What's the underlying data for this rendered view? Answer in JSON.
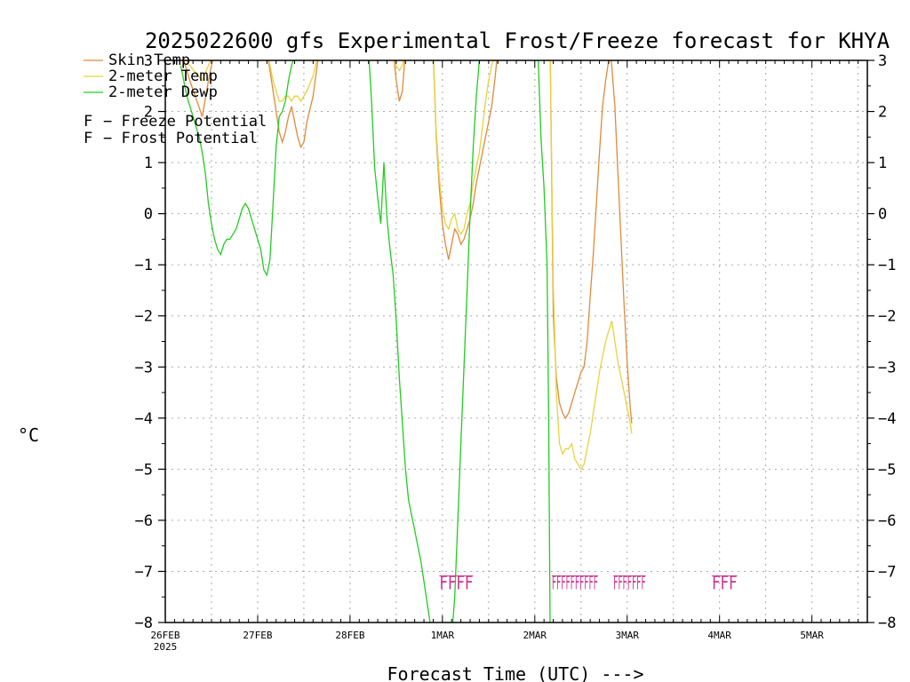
{
  "chart_data": {
    "type": "line",
    "title": "2025022600 gfs Experimental Frost/Freeze forecast for KHYA",
    "xlabel": "Forecast Time (UTC) --->",
    "ylabel": "°C",
    "ylim": [
      -8,
      3
    ],
    "xlim_hours": [
      0,
      228
    ],
    "yticks": [
      -8,
      -7,
      -6,
      -5,
      -4,
      -3,
      -2,
      -1,
      0,
      1,
      2,
      3
    ],
    "xticks": [
      {
        "label": "26FEB",
        "sublabel": "2025",
        "hour": 0
      },
      {
        "label": "27FEB",
        "hour": 30
      },
      {
        "label": "28FEB",
        "hour": 60
      },
      {
        "label": "1MAR",
        "hour": 90
      },
      {
        "label": "2MAR",
        "hour": 120
      },
      {
        "label": "3MAR",
        "hour": 150
      },
      {
        "label": "4MAR",
        "hour": 180
      },
      {
        "label": "5MAR",
        "hour": 210
      }
    ],
    "grid": true,
    "legend_position": "top-left",
    "series": [
      {
        "name": "Skin Temp",
        "color": "#e08a3c",
        "points": [
          [
            5,
            3.2
          ],
          [
            8,
            2.6
          ],
          [
            12,
            1.9
          ],
          [
            14,
            2.6
          ],
          [
            16,
            3.2
          ],
          [
            33,
            3.2
          ],
          [
            35,
            2.4
          ],
          [
            37,
            1.6
          ],
          [
            38,
            1.4
          ],
          [
            39,
            1.6
          ],
          [
            40,
            1.9
          ],
          [
            41,
            2.1
          ],
          [
            42,
            1.8
          ],
          [
            43,
            1.5
          ],
          [
            44,
            1.3
          ],
          [
            45,
            1.4
          ],
          [
            46,
            1.8
          ],
          [
            48,
            2.3
          ],
          [
            50,
            3.2
          ],
          [
            74,
            3.2
          ],
          [
            75,
            2.6
          ],
          [
            76,
            2.2
          ],
          [
            77,
            2.4
          ],
          [
            78,
            3.2
          ],
          [
            87,
            3.2
          ],
          [
            88,
            1.5
          ],
          [
            89,
            0.5
          ],
          [
            90,
            -0.2
          ],
          [
            91,
            -0.6
          ],
          [
            92,
            -0.9
          ],
          [
            93,
            -0.6
          ],
          [
            94,
            -0.3
          ],
          [
            95,
            -0.4
          ],
          [
            96,
            -0.6
          ],
          [
            97,
            -0.5
          ],
          [
            98,
            -0.3
          ],
          [
            99,
            -0.1
          ],
          [
            100,
            0.2
          ],
          [
            101,
            0.6
          ],
          [
            103,
            1.2
          ],
          [
            105,
            1.8
          ],
          [
            106,
            2.1
          ],
          [
            107,
            2.6
          ],
          [
            108,
            3.2
          ],
          [
            125,
            3.2
          ],
          [
            126,
            -2
          ],
          [
            127,
            -3.2
          ],
          [
            128,
            -3.7
          ],
          [
            129,
            -3.9
          ],
          [
            130,
            -4
          ],
          [
            131,
            -3.9
          ],
          [
            132,
            -3.7
          ],
          [
            133,
            -3.5
          ],
          [
            134,
            -3.3
          ],
          [
            135,
            -3.1
          ],
          [
            136,
            -3
          ],
          [
            137,
            -2.5
          ],
          [
            138,
            -1.6
          ],
          [
            139,
            -0.8
          ],
          [
            140,
            0.2
          ],
          [
            141,
            1.2
          ],
          [
            142,
            2.1
          ],
          [
            143,
            2.6
          ],
          [
            144,
            3
          ],
          [
            144.5,
            3.1
          ],
          [
            145,
            2.9
          ],
          [
            146,
            2.1
          ],
          [
            147,
            0.8
          ],
          [
            148,
            -0.5
          ],
          [
            149,
            -1.8
          ],
          [
            150,
            -2.9
          ],
          [
            151,
            -3.8
          ],
          [
            151.5,
            -4.1
          ]
        ]
      },
      {
        "name": "2-meter Temp",
        "color": "#e8d23c",
        "points": [
          [
            5,
            3.2
          ],
          [
            8,
            2.9
          ],
          [
            12,
            2.6
          ],
          [
            14,
            2.9
          ],
          [
            16,
            3.2
          ],
          [
            33,
            3.2
          ],
          [
            34,
            2.9
          ],
          [
            35,
            2.6
          ],
          [
            36,
            2.4
          ],
          [
            37,
            2.2
          ],
          [
            38,
            2.2
          ],
          [
            39,
            2.3
          ],
          [
            40,
            2.3
          ],
          [
            41,
            2.2
          ],
          [
            42,
            2.3
          ],
          [
            43,
            2.3
          ],
          [
            44,
            2.2
          ],
          [
            45,
            2.3
          ],
          [
            46,
            2.4
          ],
          [
            48,
            2.7
          ],
          [
            50,
            3.2
          ],
          [
            74,
            3.2
          ],
          [
            75,
            2.9
          ],
          [
            76,
            2.8
          ],
          [
            77,
            2.9
          ],
          [
            78,
            3.2
          ],
          [
            87,
            3.2
          ],
          [
            88,
            1.6
          ],
          [
            89,
            0.7
          ],
          [
            90,
            0.1
          ],
          [
            91,
            -0.2
          ],
          [
            92,
            -0.3
          ],
          [
            93,
            -0.1
          ],
          [
            94,
            0
          ],
          [
            95,
            -0.3
          ],
          [
            96,
            -0.4
          ],
          [
            97,
            -0.3
          ],
          [
            98,
            0
          ],
          [
            99,
            0.2
          ],
          [
            100,
            0.6
          ],
          [
            101,
            0.9
          ],
          [
            102,
            1.2
          ],
          [
            103,
            1.7
          ],
          [
            104,
            2.2
          ],
          [
            105,
            2.6
          ],
          [
            106,
            2.9
          ],
          [
            107,
            3.1
          ],
          [
            108,
            3.2
          ],
          [
            125,
            3.2
          ],
          [
            126,
            -1.4
          ],
          [
            127,
            -3.5
          ],
          [
            128,
            -4.5
          ],
          [
            129,
            -4.7
          ],
          [
            130,
            -4.6
          ],
          [
            131,
            -4.6
          ],
          [
            132,
            -4.5
          ],
          [
            133,
            -4.8
          ],
          [
            134,
            -4.9
          ],
          [
            135,
            -5
          ],
          [
            136,
            -4.9
          ],
          [
            137,
            -4.6
          ],
          [
            138,
            -4.3
          ],
          [
            139,
            -3.9
          ],
          [
            140,
            -3.5
          ],
          [
            141,
            -3.1
          ],
          [
            142,
            -2.8
          ],
          [
            143,
            -2.5
          ],
          [
            144,
            -2.3
          ],
          [
            145,
            -2.1
          ],
          [
            146,
            -2.5
          ],
          [
            147,
            -2.9
          ],
          [
            148,
            -3.2
          ],
          [
            149,
            -3.5
          ],
          [
            150,
            -3.8
          ],
          [
            151,
            -4.1
          ],
          [
            151.5,
            -4.3
          ]
        ]
      },
      {
        "name": "2-meter Dewp",
        "color": "#22cc22",
        "points": [
          [
            5,
            2.9
          ],
          [
            7,
            2.3
          ],
          [
            9,
            1.9
          ],
          [
            11,
            1.5
          ],
          [
            12,
            1.2
          ],
          [
            13,
            0.8
          ],
          [
            14,
            0.2
          ],
          [
            15,
            -0.2
          ],
          [
            16,
            -0.5
          ],
          [
            17,
            -0.7
          ],
          [
            18,
            -0.8
          ],
          [
            19,
            -0.6
          ],
          [
            20,
            -0.5
          ],
          [
            21,
            -0.5
          ],
          [
            22,
            -0.4
          ],
          [
            23,
            -0.3
          ],
          [
            24,
            -0.1
          ],
          [
            25,
            0.1
          ],
          [
            26,
            0.2
          ],
          [
            27,
            0.1
          ],
          [
            28,
            -0.1
          ],
          [
            29,
            -0.3
          ],
          [
            30,
            -0.5
          ],
          [
            31,
            -0.7
          ],
          [
            32,
            -1.1
          ],
          [
            33,
            -1.2
          ],
          [
            34,
            -0.9
          ],
          [
            35,
            0.2
          ],
          [
            36,
            1.3
          ],
          [
            37,
            1.9
          ],
          [
            38,
            2
          ],
          [
            39,
            2.2
          ],
          [
            40,
            2.6
          ],
          [
            41,
            2.9
          ],
          [
            42,
            3.1
          ],
          [
            66,
            3.2
          ],
          [
            67,
            2.2
          ],
          [
            68,
            0.9
          ],
          [
            69,
            0.3
          ],
          [
            70,
            -0.2
          ],
          [
            71,
            1
          ],
          [
            72,
            -0.1
          ],
          [
            73,
            -0.7
          ],
          [
            74,
            -1.2
          ],
          [
            75,
            -2.1
          ],
          [
            76,
            -3.2
          ],
          [
            77,
            -4.1
          ],
          [
            78,
            -5
          ],
          [
            79,
            -5.6
          ],
          [
            80,
            -5.9
          ],
          [
            81,
            -6.2
          ],
          [
            82,
            -6.5
          ],
          [
            83,
            -6.8
          ],
          [
            84,
            -7.2
          ],
          [
            85,
            -7.6
          ],
          [
            86,
            -8
          ],
          [
            87,
            -8.3
          ],
          [
            93,
            -8.3
          ],
          [
            94,
            -7.5
          ],
          [
            95,
            -6
          ],
          [
            96,
            -4.5
          ],
          [
            97,
            -3
          ],
          [
            98,
            -1.5
          ],
          [
            99,
            0
          ],
          [
            100,
            1.3
          ],
          [
            101,
            2.3
          ],
          [
            102,
            3
          ],
          [
            103,
            3.2
          ],
          [
            121,
            3.2
          ],
          [
            122,
            1.5
          ],
          [
            123,
            0.5
          ],
          [
            124,
            -1
          ],
          [
            124.5,
            -4
          ],
          [
            125,
            -8.3
          ]
        ]
      }
    ],
    "flags": [
      {
        "legend_letter": "F",
        "legend_label": "Freeze Potential",
        "color": "#cc2f8e",
        "letter": "F",
        "hours": [
          89.5,
          90.5,
          91.5,
          92.5,
          93.5,
          94.5
        ]
      },
      {
        "legend_letter": "F",
        "legend_label": "Frost Potential",
        "color": "#3c4ce0",
        "letter": "F",
        "hours": []
      }
    ],
    "freeze_text_groups": [
      {
        "text": "FFFF",
        "start_hour": 89
      },
      {
        "text": "FFFFFFFFFF",
        "start_hour": 125.5
      },
      {
        "text": "FFFFFFF",
        "start_hour": 145.5
      },
      {
        "text": "FFF",
        "start_hour": 177.5
      }
    ]
  }
}
